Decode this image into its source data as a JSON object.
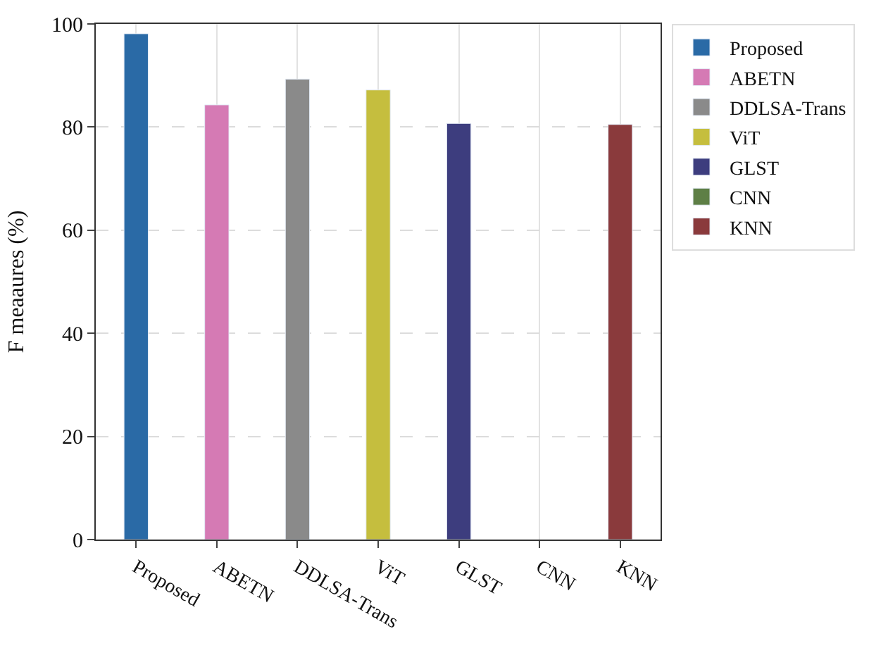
{
  "chart_data": {
    "type": "bar",
    "ylabel": "F meaaures (%)",
    "categories": [
      "Proposed",
      "ABETN",
      "DDLSA-Trans",
      "ViT",
      "GLST",
      "CNN",
      "KNN"
    ],
    "series": [
      {
        "name": "Proposed",
        "color": "#2a6aa6",
        "values": [
          98.1,
          null,
          null,
          null,
          null,
          null,
          null
        ]
      },
      {
        "name": "ABETN",
        "color": "#d57ab4",
        "values": [
          null,
          84.3,
          null,
          null,
          null,
          null,
          null
        ]
      },
      {
        "name": "DDLSA-Trans",
        "color": "#8a8a8a",
        "values": [
          null,
          null,
          89.3,
          null,
          null,
          null,
          null
        ]
      },
      {
        "name": "ViT",
        "color": "#c5be3e",
        "values": [
          null,
          null,
          null,
          87.2,
          null,
          null,
          null
        ]
      },
      {
        "name": "GLST",
        "color": "#3d3d7e",
        "values": [
          null,
          null,
          null,
          null,
          80.7,
          null,
          null
        ]
      },
      {
        "name": "CNN",
        "color": "#5e7f46",
        "values": [
          null,
          null,
          null,
          null,
          null,
          null,
          null
        ]
      },
      {
        "name": "KNN",
        "color": "#8a3a3c",
        "values": [
          null,
          null,
          null,
          null,
          null,
          null,
          80.5
        ]
      }
    ],
    "ylim": [
      0,
      100
    ],
    "yticks": [
      0,
      20,
      40,
      60,
      80,
      100
    ],
    "grid": true,
    "legend": "right"
  }
}
